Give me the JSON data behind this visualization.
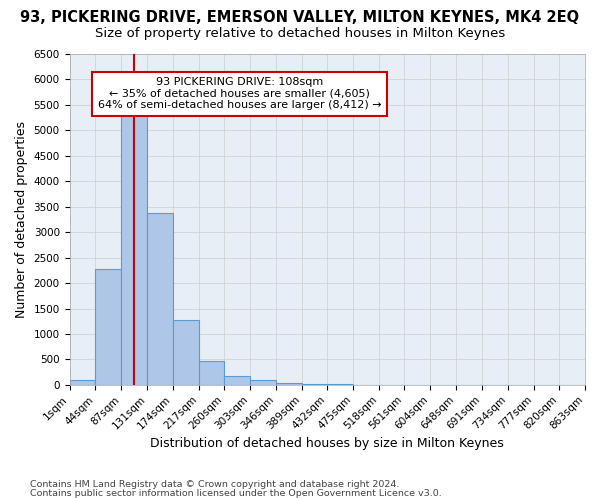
{
  "title": "93, PICKERING DRIVE, EMERSON VALLEY, MILTON KEYNES, MK4 2EQ",
  "subtitle": "Size of property relative to detached houses in Milton Keynes",
  "xlabel": "Distribution of detached houses by size in Milton Keynes",
  "ylabel": "Number of detached properties",
  "footnote1": "Contains HM Land Registry data © Crown copyright and database right 2024.",
  "footnote2": "Contains public sector information licensed under the Open Government Licence v3.0.",
  "annotation_title": "93 PICKERING DRIVE: 108sqm",
  "annotation_line1": "← 35% of detached houses are smaller (4,605)",
  "annotation_line2": "64% of semi-detached houses are larger (8,412) →",
  "property_size": 108,
  "bin_edges": [
    1,
    44,
    87,
    131,
    174,
    217,
    260,
    303,
    346,
    389,
    432,
    475,
    518,
    561,
    604,
    648,
    691,
    734,
    777,
    820,
    863
  ],
  "bin_counts": [
    100,
    2280,
    5420,
    3370,
    1280,
    470,
    175,
    95,
    40,
    15,
    8,
    4,
    3,
    2,
    2,
    1,
    1,
    1,
    1,
    0
  ],
  "bar_color": "#aec6e8",
  "bar_edge_color": "#5b9bd5",
  "red_line_color": "#cc0000",
  "annotation_box_color": "#cc0000",
  "ylim": [
    0,
    6500
  ],
  "yticks": [
    0,
    500,
    1000,
    1500,
    2000,
    2500,
    3000,
    3500,
    4000,
    4500,
    5000,
    5500,
    6000,
    6500
  ],
  "grid_color": "#cccccc",
  "background_color": "#e8eef5",
  "title_fontsize": 10.5,
  "subtitle_fontsize": 9.5,
  "axis_label_fontsize": 9,
  "tick_fontsize": 7.5,
  "annotation_fontsize": 8,
  "footnote_fontsize": 6.8
}
